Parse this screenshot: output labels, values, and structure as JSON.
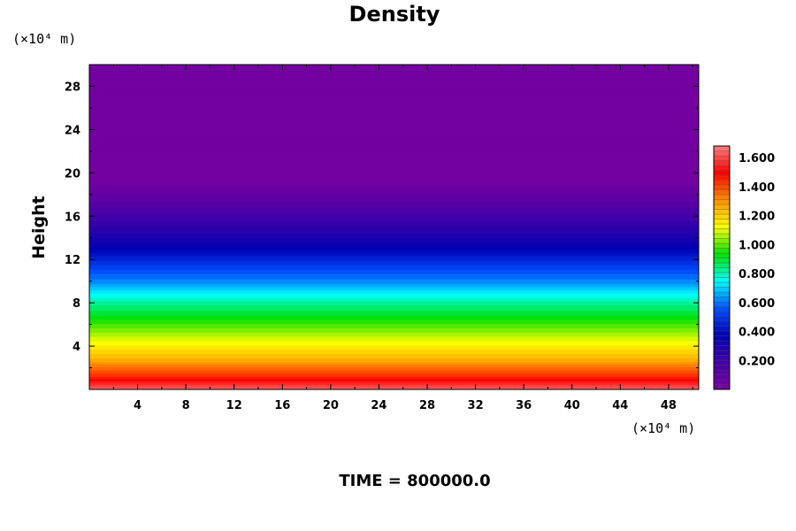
{
  "chart_data": {
    "type": "heatmap",
    "title": "Density",
    "ylabel": "Height",
    "y_unit": "(×10⁴ m)",
    "x_unit": "(×10⁴ m)",
    "footer": "TIME = 800000.0",
    "xlim": [
      0,
      50.5
    ],
    "ylim": [
      0,
      30
    ],
    "x_ticks": [
      4,
      8,
      12,
      16,
      20,
      24,
      28,
      32,
      36,
      40,
      44,
      48
    ],
    "y_ticks": [
      4,
      8,
      12,
      16,
      20,
      24,
      28
    ],
    "x_tick_labels": [
      "4",
      "8",
      "12",
      "16",
      "20",
      "24",
      "28",
      "32",
      "36",
      "40",
      "44",
      "48"
    ],
    "y_tick_labels": [
      "4",
      "8",
      "12",
      "16",
      "20",
      "24",
      "28"
    ],
    "colorbar": {
      "min": 0,
      "max": 1.68,
      "levels": 50,
      "ticks": [
        0.2,
        0.4,
        0.6,
        0.8,
        1.0,
        1.2,
        1.4,
        1.6
      ],
      "tick_labels": [
        "0.200",
        "0.400",
        "0.600",
        "0.800",
        "1.000",
        "1.200",
        "1.400",
        "1.600"
      ],
      "colors": [
        "#7800a0",
        "#4000a8",
        "#0000b4",
        "#0050ff",
        "#00ffff",
        "#00e000",
        "#ffff00",
        "#ff9000",
        "#ff0000",
        "#ff8080"
      ]
    },
    "profile": {
      "heights": [
        0,
        1,
        2,
        3,
        4,
        5,
        6,
        7,
        8,
        9,
        10,
        11,
        12,
        13,
        14,
        15,
        16,
        17,
        18,
        19,
        20,
        30
      ],
      "values": [
        1.66,
        1.47,
        1.36,
        1.23,
        1.15,
        1.07,
        0.98,
        0.9,
        0.82,
        0.73,
        0.62,
        0.55,
        0.46,
        0.37,
        0.3,
        0.24,
        0.18,
        0.12,
        0.07,
        0.03,
        0.0,
        0.0
      ]
    }
  }
}
